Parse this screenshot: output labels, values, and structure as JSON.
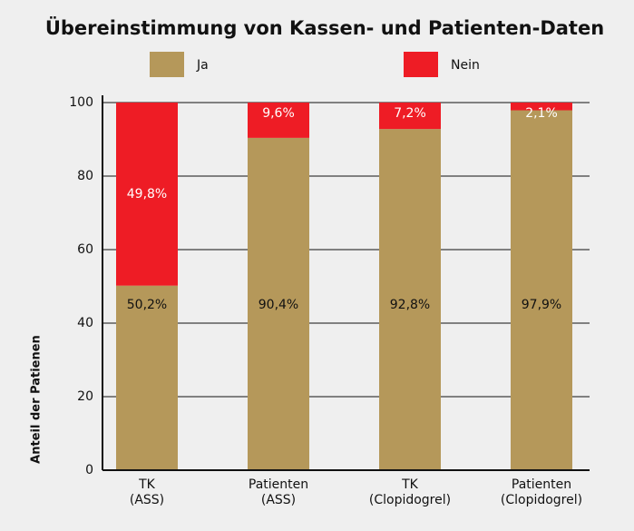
{
  "chart_data": {
    "type": "stacked_bar",
    "title": "Übereinstimmung von Kassen- und Patienten-Daten",
    "y_label": "Anteil der Patienen",
    "categories": [
      "TK\n(ASS)",
      "Patienten\n(ASS)",
      "TK\n(Clopidogrel)",
      "Patienten\n(Clopidogrel)"
    ],
    "series": [
      {
        "name": "Ja",
        "color": "#b5985a",
        "values": [
          50.2,
          90.4,
          92.8,
          97.9
        ],
        "value_labels": [
          "50,2%",
          "90,4%",
          "92,8%",
          "97,9%"
        ]
      },
      {
        "name": "Nein",
        "color": "#ee1c25",
        "values": [
          49.8,
          9.6,
          7.2,
          2.1
        ],
        "value_labels": [
          "49,8%",
          "9,6%",
          "7,2%",
          "2,1%"
        ]
      }
    ],
    "ylim": [
      0,
      100
    ],
    "yticks": [
      0,
      20,
      40,
      60,
      80,
      100
    ],
    "grid": true
  }
}
